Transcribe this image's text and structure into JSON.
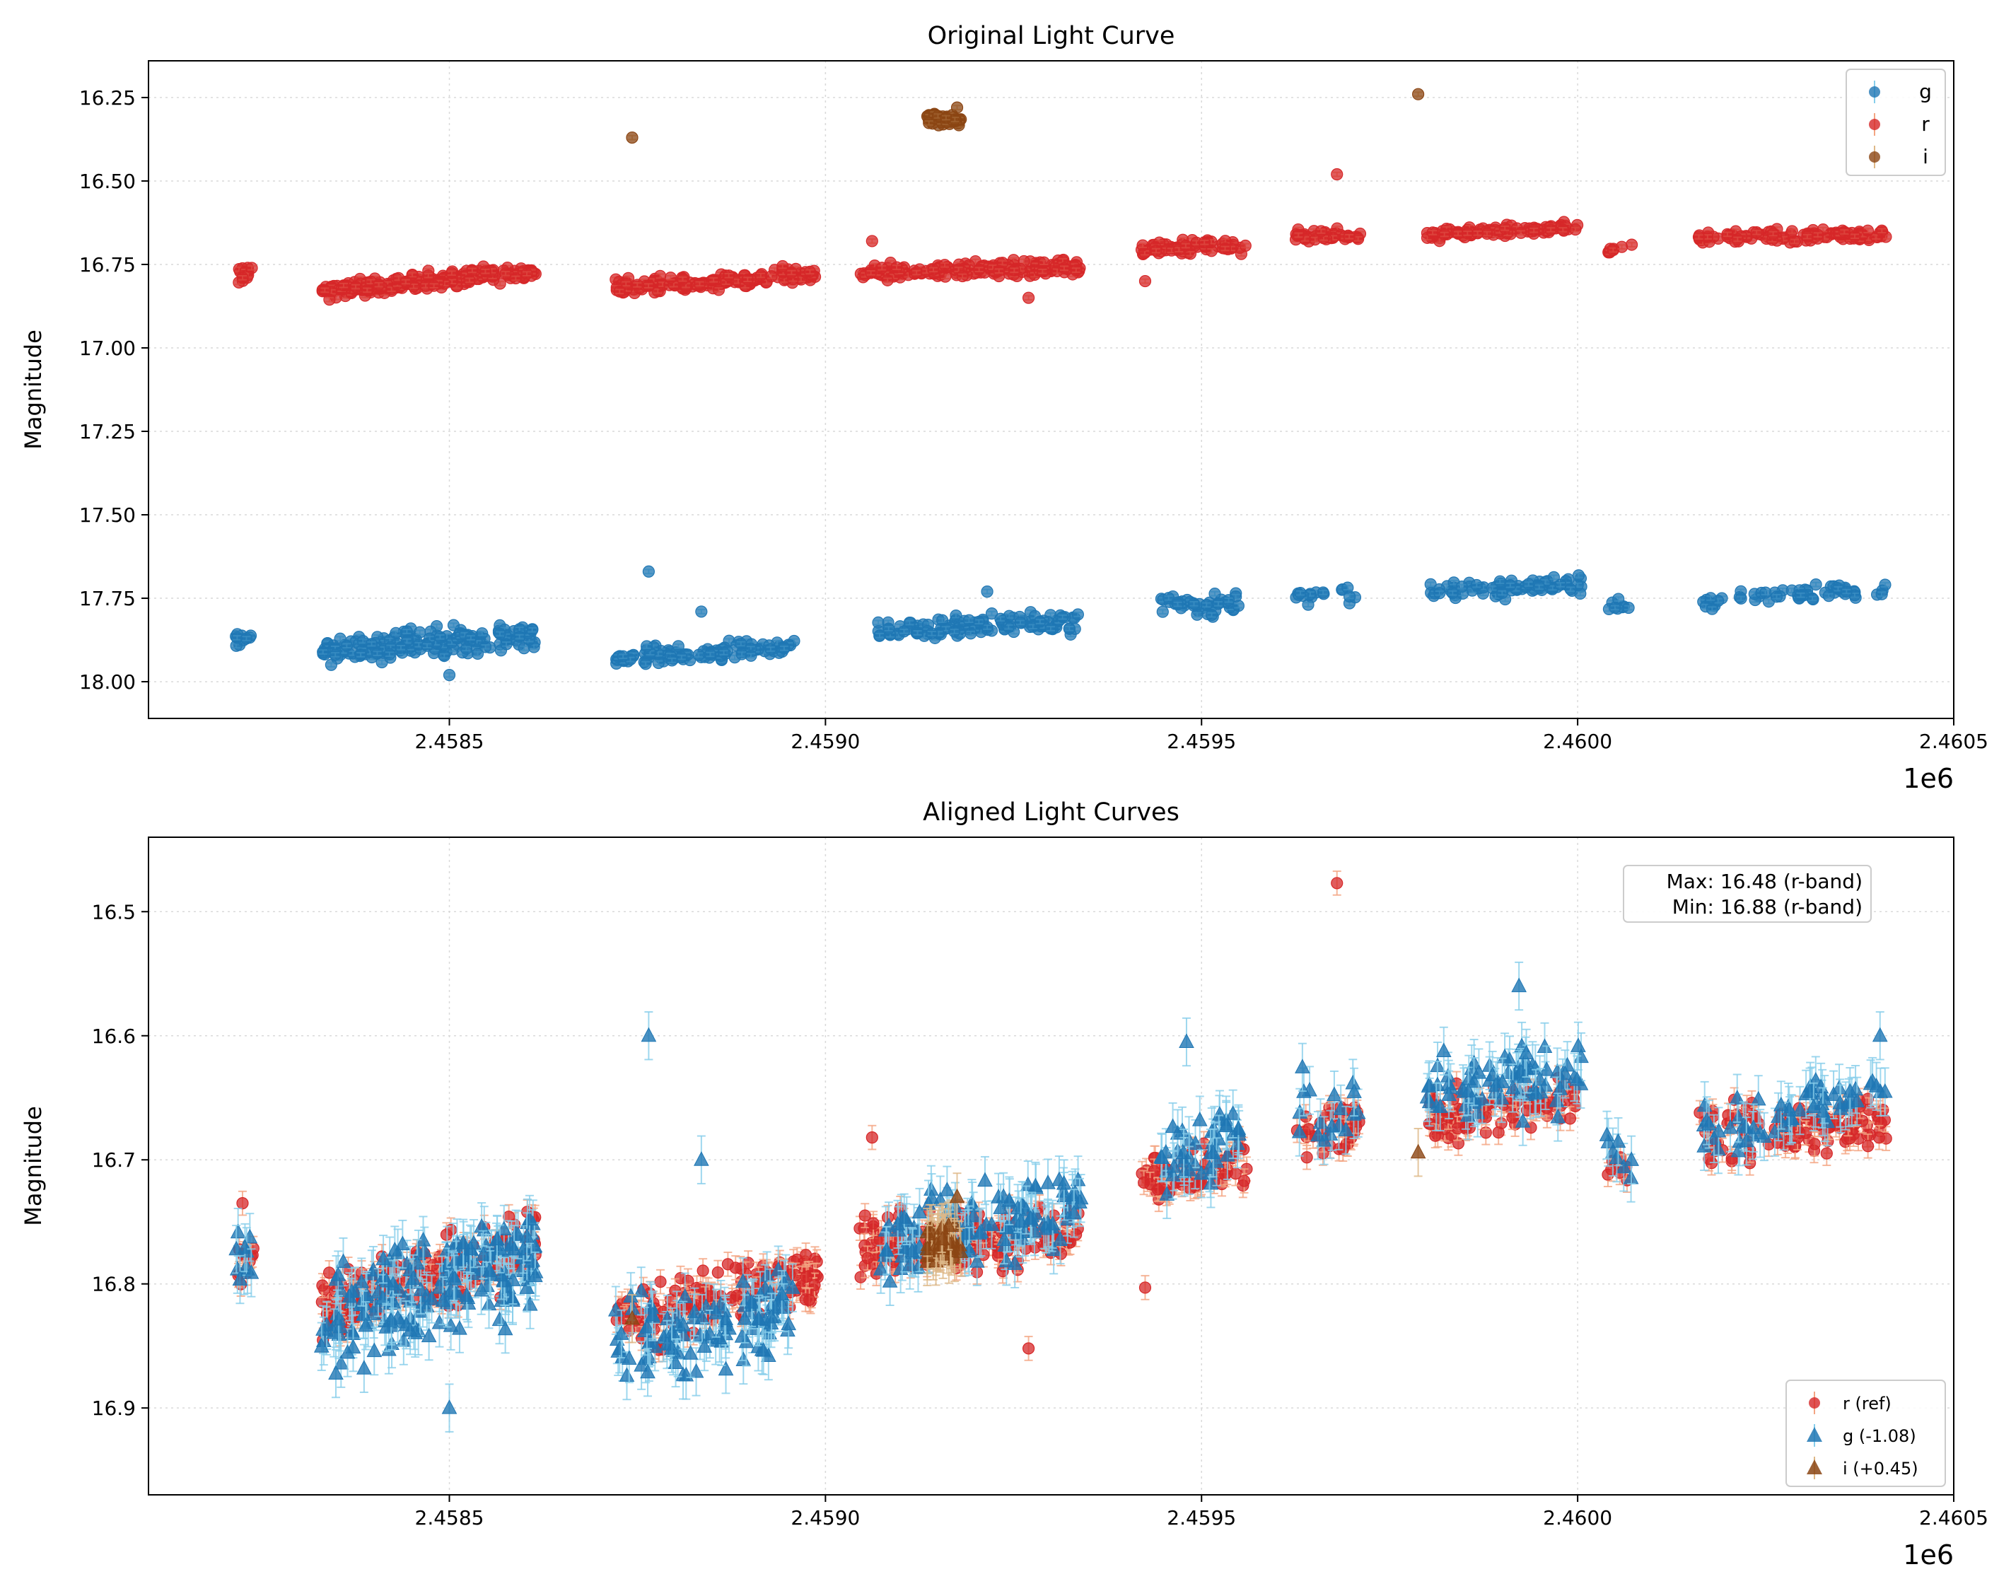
{
  "chart_data": [
    {
      "type": "scatter",
      "title": "Original Light Curve",
      "xlabel": "",
      "ylabel": "Magnitude",
      "x_offset_label": "1e6",
      "xlim": [
        2458100,
        2460500
      ],
      "ylim": [
        18.11,
        16.14
      ],
      "y_inverted": true,
      "grid": true,
      "xticks": [
        2458500,
        2459000,
        2459500,
        2460000,
        2460500
      ],
      "xtick_labels": [
        "2.4585",
        "2.4590",
        "2.4595",
        "2.4600",
        "2.4605"
      ],
      "yticks": [
        16.25,
        16.5,
        16.75,
        17.0,
        17.25,
        17.5,
        17.75,
        18.0
      ],
      "ytick_labels": [
        "16.25",
        "16.50",
        "16.75",
        "17.00",
        "17.25",
        "17.50",
        "17.75",
        "18.00"
      ],
      "legend": {
        "position": "top-right",
        "entries": [
          "g",
          "r",
          "i"
        ]
      },
      "series": [
        {
          "name": "g",
          "color": "#1f77b4",
          "error_color": "#87ceeb",
          "marker": "circle",
          "segments": [
            {
              "x0": 2458215,
              "x1": 2458240,
              "y0": 17.87,
              "y1": 17.86,
              "spread": 0.07,
              "n": 10
            },
            {
              "x0": 2458330,
              "x1": 2458615,
              "y0": 17.91,
              "y1": 17.86,
              "spread": 0.12,
              "n": 190
            },
            {
              "x0": 2458720,
              "x1": 2458960,
              "y0": 17.93,
              "y1": 17.9,
              "spread": 0.08,
              "n": 110
            },
            {
              "x0": 2459070,
              "x1": 2459340,
              "y0": 17.85,
              "y1": 17.82,
              "spread": 0.09,
              "n": 120
            },
            {
              "x0": 2459445,
              "x1": 2459550,
              "y0": 17.77,
              "y1": 17.77,
              "spread": 0.1,
              "n": 45
            },
            {
              "x0": 2459625,
              "x1": 2459710,
              "y0": 17.74,
              "y1": 17.74,
              "spread": 0.09,
              "n": 18
            },
            {
              "x0": 2459800,
              "x1": 2460005,
              "y0": 17.73,
              "y1": 17.71,
              "spread": 0.08,
              "n": 75
            },
            {
              "x0": 2460035,
              "x1": 2460075,
              "y0": 17.77,
              "y1": 17.79,
              "spread": 0.06,
              "n": 8
            },
            {
              "x0": 2460160,
              "x1": 2460410,
              "y0": 17.76,
              "y1": 17.72,
              "spread": 0.07,
              "n": 60
            }
          ],
          "outliers": [
            [
              2458765,
              17.67
            ],
            [
              2458835,
              17.79
            ],
            [
              2459215,
              17.73
            ],
            [
              2458500,
              17.98
            ]
          ]
        },
        {
          "name": "r",
          "color": "#d62728",
          "error_color": "#f4a582",
          "marker": "circle",
          "segments": [
            {
              "x0": 2458215,
              "x1": 2458240,
              "y0": 16.78,
              "y1": 16.77,
              "spread": 0.07,
              "n": 12
            },
            {
              "x0": 2458330,
              "x1": 2458615,
              "y0": 16.83,
              "y1": 16.77,
              "spread": 0.07,
              "n": 210
            },
            {
              "x0": 2458720,
              "x1": 2458990,
              "y0": 16.82,
              "y1": 16.78,
              "spread": 0.07,
              "n": 150
            },
            {
              "x0": 2459045,
              "x1": 2459340,
              "y0": 16.77,
              "y1": 16.76,
              "spread": 0.07,
              "n": 160
            },
            {
              "x0": 2459420,
              "x1": 2459560,
              "y0": 16.71,
              "y1": 16.69,
              "spread": 0.06,
              "n": 70
            },
            {
              "x0": 2459625,
              "x1": 2459715,
              "y0": 16.67,
              "y1": 16.66,
              "spread": 0.06,
              "n": 40
            },
            {
              "x0": 2459800,
              "x1": 2460000,
              "y0": 16.66,
              "y1": 16.64,
              "spread": 0.05,
              "n": 95
            },
            {
              "x0": 2460040,
              "x1": 2460075,
              "y0": 16.71,
              "y1": 16.69,
              "spread": 0.03,
              "n": 8
            },
            {
              "x0": 2460160,
              "x1": 2460410,
              "y0": 16.67,
              "y1": 16.66,
              "spread": 0.05,
              "n": 110
            }
          ],
          "outliers": [
            [
              2459680,
              16.48
            ],
            [
              2459270,
              16.85
            ],
            [
              2459425,
              16.8
            ],
            [
              2459062,
              16.68
            ]
          ]
        },
        {
          "name": "i",
          "color": "#8b4513",
          "error_color": "#deb887",
          "marker": "circle",
          "segments": [
            {
              "x0": 2459135,
              "x1": 2459180,
              "y0": 16.31,
              "y1": 16.32,
              "spread": 0.05,
              "n": 45
            }
          ],
          "outliers": [
            [
              2458743,
              16.37
            ],
            [
              2459788,
              16.24
            ],
            [
              2459175,
              16.28
            ]
          ]
        }
      ]
    },
    {
      "type": "scatter",
      "title": "Aligned Light Curves",
      "xlabel": "",
      "ylabel": "Magnitude",
      "x_offset_label": "1e6",
      "xlim": [
        2458100,
        2460500
      ],
      "ylim": [
        16.97,
        16.44
      ],
      "y_inverted": true,
      "grid": true,
      "xticks": [
        2458500,
        2459000,
        2459500,
        2460000,
        2460500
      ],
      "xtick_labels": [
        "2.4585",
        "2.4590",
        "2.4595",
        "2.4600",
        "2.4605"
      ],
      "yticks": [
        16.5,
        16.6,
        16.7,
        16.8,
        16.9
      ],
      "ytick_labels": [
        "16.5",
        "16.6",
        "16.7",
        "16.8",
        "16.9"
      ],
      "legend": {
        "position": "bottom-right",
        "entries": [
          "r (ref)",
          "g (-1.08)",
          "i (+0.45)"
        ]
      },
      "annotation": {
        "position": "top-right",
        "lines": [
          "Max: 16.48 (r-band)",
          "Min: 16.88 (r-band)"
        ]
      },
      "series": [
        {
          "name": "r (ref)",
          "color": "#d62728",
          "error_color": "#f4a582",
          "marker": "circle",
          "segments": [
            {
              "x0": 2458215,
              "x1": 2458240,
              "y0": 16.79,
              "y1": 16.78,
              "spread": 0.06,
              "n": 12
            },
            {
              "x0": 2458330,
              "x1": 2458615,
              "y0": 16.82,
              "y1": 16.77,
              "spread": 0.08,
              "n": 200
            },
            {
              "x0": 2458720,
              "x1": 2458990,
              "y0": 16.83,
              "y1": 16.79,
              "spread": 0.07,
              "n": 150
            },
            {
              "x0": 2459045,
              "x1": 2459340,
              "y0": 16.77,
              "y1": 16.76,
              "spread": 0.07,
              "n": 160
            },
            {
              "x0": 2459420,
              "x1": 2459560,
              "y0": 16.72,
              "y1": 16.7,
              "spread": 0.06,
              "n": 70
            },
            {
              "x0": 2459625,
              "x1": 2459715,
              "y0": 16.68,
              "y1": 16.67,
              "spread": 0.07,
              "n": 40
            },
            {
              "x0": 2459800,
              "x1": 2460000,
              "y0": 16.67,
              "y1": 16.65,
              "spread": 0.06,
              "n": 95
            },
            {
              "x0": 2460040,
              "x1": 2460075,
              "y0": 16.71,
              "y1": 16.7,
              "spread": 0.04,
              "n": 8
            },
            {
              "x0": 2460160,
              "x1": 2460410,
              "y0": 16.68,
              "y1": 16.67,
              "spread": 0.06,
              "n": 110
            }
          ],
          "outliers": [
            [
              2459680,
              16.477
            ],
            [
              2459270,
              16.852
            ],
            [
              2459425,
              16.803
            ],
            [
              2459062,
              16.682
            ],
            [
              2458225,
              16.735
            ]
          ]
        },
        {
          "name": "g (-1.08)",
          "color": "#1f77b4",
          "error_color": "#87ceeb",
          "marker": "triangle",
          "segments": [
            {
              "x0": 2458215,
              "x1": 2458240,
              "y0": 16.79,
              "y1": 16.78,
              "spread": 0.08,
              "n": 10
            },
            {
              "x0": 2458330,
              "x1": 2458615,
              "y0": 16.83,
              "y1": 16.78,
              "spread": 0.12,
              "n": 190
            },
            {
              "x0": 2458720,
              "x1": 2458960,
              "y0": 16.85,
              "y1": 16.82,
              "spread": 0.09,
              "n": 110
            },
            {
              "x0": 2459070,
              "x1": 2459340,
              "y0": 16.77,
              "y1": 16.74,
              "spread": 0.09,
              "n": 120
            },
            {
              "x0": 2459445,
              "x1": 2459550,
              "y0": 16.7,
              "y1": 16.68,
              "spread": 0.1,
              "n": 45
            },
            {
              "x0": 2459625,
              "x1": 2459710,
              "y0": 16.66,
              "y1": 16.66,
              "spread": 0.09,
              "n": 18
            },
            {
              "x0": 2459800,
              "x1": 2460005,
              "y0": 16.65,
              "y1": 16.63,
              "spread": 0.09,
              "n": 75
            },
            {
              "x0": 2460035,
              "x1": 2460075,
              "y0": 16.69,
              "y1": 16.71,
              "spread": 0.07,
              "n": 8
            },
            {
              "x0": 2460160,
              "x1": 2460410,
              "y0": 16.68,
              "y1": 16.64,
              "spread": 0.07,
              "n": 60
            }
          ],
          "outliers": [
            [
              2458765,
              16.6
            ],
            [
              2458835,
              16.7
            ],
            [
              2458500,
              16.9
            ],
            [
              2459922,
              16.56
            ],
            [
              2460402,
              16.6
            ],
            [
              2459480,
              16.605
            ]
          ]
        },
        {
          "name": "i (+0.45)",
          "color": "#8b4513",
          "error_color": "#deb887",
          "marker": "triangle",
          "segments": [
            {
              "x0": 2459135,
              "x1": 2459180,
              "y0": 16.765,
              "y1": 16.77,
              "spread": 0.05,
              "n": 45
            }
          ],
          "outliers": [
            [
              2458743,
              16.828
            ],
            [
              2459788,
              16.694
            ],
            [
              2459175,
              16.73
            ]
          ]
        }
      ]
    }
  ]
}
